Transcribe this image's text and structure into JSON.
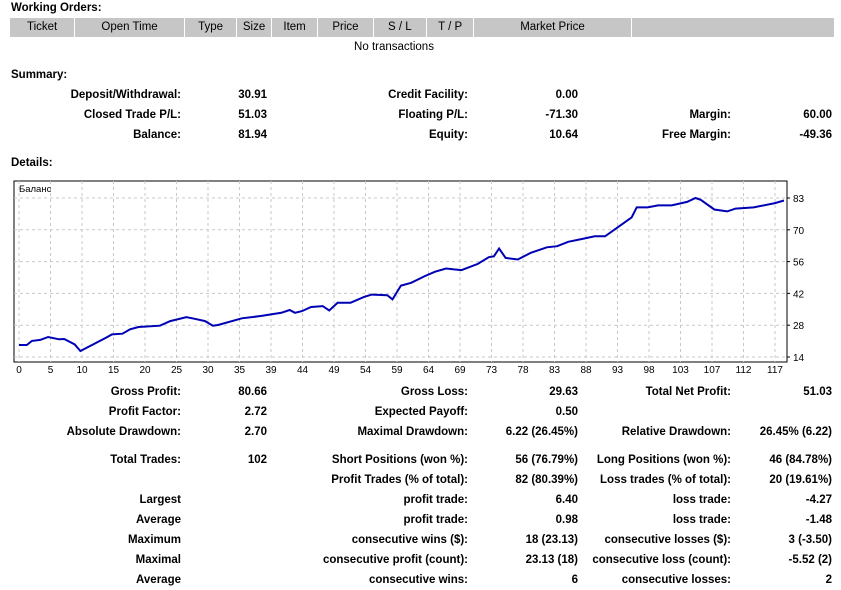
{
  "working_orders": {
    "title": "Working Orders:",
    "columns": [
      "Ticket",
      "Open Time",
      "Type",
      "Size",
      "Item",
      "Price",
      "S / L",
      "T / P",
      "Market Price",
      ""
    ],
    "empty_text": "No transactions"
  },
  "summary": {
    "title": "Summary:",
    "rows": [
      [
        "Deposit/Withdrawal:",
        "30.91",
        "Credit Facility:",
        "0.00",
        "",
        ""
      ],
      [
        "Closed Trade P/L:",
        "51.03",
        "Floating P/L:",
        "-71.30",
        "Margin:",
        "60.00"
      ],
      [
        "Balance:",
        "81.94",
        "Equity:",
        "10.64",
        "Free Margin:",
        "-49.36"
      ]
    ]
  },
  "details": {
    "title": "Details:",
    "rows": [
      [
        "Gross Profit:",
        "80.66",
        "Gross Loss:",
        "29.63",
        "Total Net Profit:",
        "51.03"
      ],
      [
        "Profit Factor:",
        "2.72",
        "Expected Payoff:",
        "0.50",
        "",
        ""
      ],
      [
        "Absolute Drawdown:",
        "2.70",
        "Maximal Drawdown:",
        "6.22 (26.45%)",
        "Relative Drawdown:",
        "26.45% (6.22)"
      ],
      [
        "Total Trades:",
        "102",
        "Short Positions (won %):",
        "56 (76.79%)",
        "Long Positions (won %):",
        "46 (84.78%)"
      ],
      [
        "",
        "",
        "Profit Trades (% of total):",
        "82 (80.39%)",
        "Loss trades (% of total):",
        "20 (19.61%)"
      ],
      [
        "Largest",
        "",
        "profit trade:",
        "6.40",
        "loss trade:",
        "-4.27"
      ],
      [
        "Average",
        "",
        "profit trade:",
        "0.98",
        "loss trade:",
        "-1.48"
      ],
      [
        "Maximum",
        "",
        "consecutive wins ($):",
        "18 (23.13)",
        "consecutive losses ($):",
        "3 (-3.50)"
      ],
      [
        "Maximal",
        "",
        "consecutive profit (count):",
        "23.13 (18)",
        "consecutive loss (count):",
        "-5.52 (2)"
      ],
      [
        "Average",
        "",
        "consecutive wins:",
        "6",
        "consecutive losses:",
        "2"
      ]
    ]
  },
  "chart_data": {
    "type": "line",
    "title": "Баланс",
    "grid": true,
    "line_color": "#0000b4",
    "xlim": [
      0,
      118.5
    ],
    "ylim": [
      14,
      83
    ],
    "x_ticks": [
      0,
      5,
      10,
      15,
      20,
      25,
      30,
      35,
      39,
      44,
      49,
      54,
      59,
      64,
      69,
      73,
      78,
      83,
      88,
      93,
      98,
      103,
      107,
      112,
      117
    ],
    "y_ticks": [
      14,
      28,
      42,
      56,
      70,
      83
    ],
    "series": [
      {
        "x": [
          0,
          1.2,
          2,
          3.3,
          4.5,
          6.2,
          7,
          8.6,
          9.5,
          13.5,
          14.4,
          16,
          17.2,
          18.5,
          21.8,
          23.4,
          25.9,
          27.1,
          28.8,
          30,
          30.8,
          34.5,
          37.4,
          40.6,
          41.9,
          42.7,
          43.8,
          45.2,
          47,
          48,
          49.3,
          51.3,
          53.4,
          54.6,
          57,
          57.8,
          59.1,
          60.7,
          62.8,
          64.4,
          66.1,
          67.3,
          68.5,
          71,
          72.7,
          73.5,
          74.3,
          75.3,
          77.2,
          79.2,
          81.7,
          83.3,
          85,
          87.4,
          89.1,
          90.7,
          94.8,
          95.6,
          97.3,
          98.9,
          101,
          103.4,
          104.7,
          105.5,
          107.6,
          109.6,
          110.9,
          113.7,
          117,
          118.4
        ],
        "y": [
          19.2,
          19.2,
          21,
          21.4,
          22.7,
          21.7,
          21.8,
          19.5,
          16.6,
          22.4,
          23.8,
          24.1,
          26,
          27,
          27.6,
          29.6,
          31.3,
          30.6,
          29.6,
          27.6,
          27.9,
          30.8,
          31.8,
          33.2,
          34.4,
          33.2,
          33.9,
          35.7,
          36.1,
          34.2,
          37.5,
          37.5,
          40.1,
          41.1,
          40.8,
          39,
          45,
          46.2,
          49.1,
          51,
          52.4,
          52,
          51.7,
          54.4,
          57.3,
          57.7,
          61.1,
          57,
          56.3,
          59.2,
          61.6,
          62.1,
          64,
          65.4,
          66.4,
          66.4,
          74.6,
          78.9,
          78.9,
          79.8,
          79.8,
          81.3,
          83,
          82.2,
          78,
          77.2,
          78.4,
          78.9,
          80.8,
          81.9
        ]
      }
    ]
  }
}
